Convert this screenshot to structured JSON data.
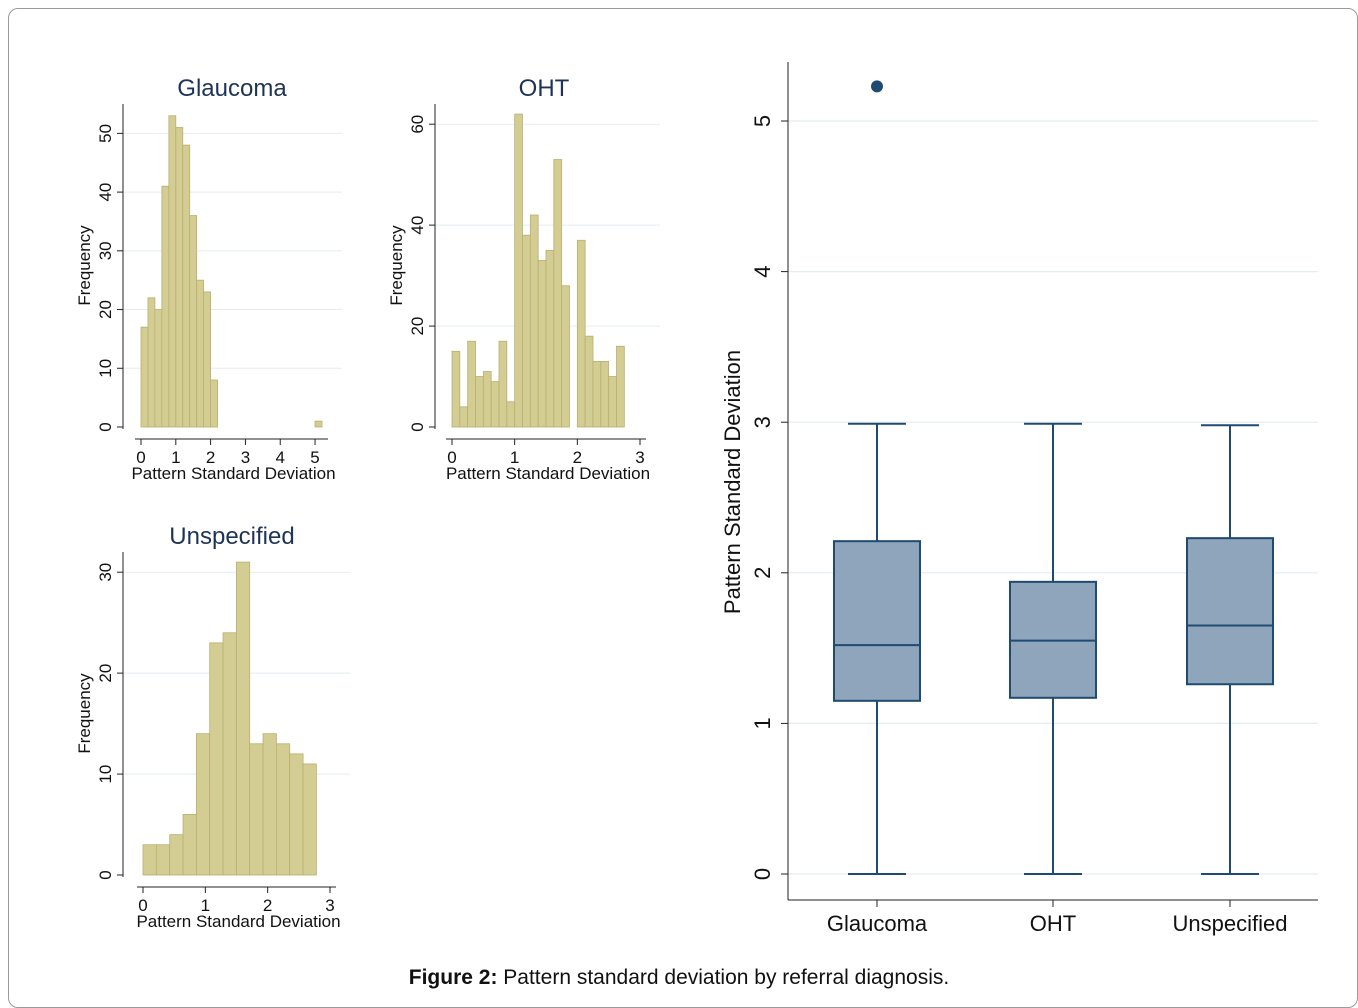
{
  "caption": {
    "label": "Figure 2:",
    "text": " Pattern standard deviation by referral diagnosis."
  },
  "chart_data": [
    {
      "type": "bar",
      "title": "Glaucoma",
      "xlabel": "Pattern Standard Deviation",
      "ylabel": "Frequency",
      "xlim": [
        0,
        5.2
      ],
      "ylim": [
        0,
        55
      ],
      "xticks": [
        0,
        1,
        2,
        3,
        4,
        5
      ],
      "yticks": [
        0,
        10,
        20,
        30,
        40,
        50
      ],
      "bin_width": 0.2,
      "bins": [
        {
          "x": 0.0,
          "v": 17
        },
        {
          "x": 0.2,
          "v": 22
        },
        {
          "x": 0.4,
          "v": 20
        },
        {
          "x": 0.6,
          "v": 41
        },
        {
          "x": 0.8,
          "v": 53
        },
        {
          "x": 1.0,
          "v": 51
        },
        {
          "x": 1.2,
          "v": 48
        },
        {
          "x": 1.4,
          "v": 36
        },
        {
          "x": 1.6,
          "v": 25
        },
        {
          "x": 1.8,
          "v": 23
        },
        {
          "x": 2.0,
          "v": 8
        },
        {
          "x": 5.0,
          "v": 1
        }
      ],
      "grid": true
    },
    {
      "type": "bar",
      "title": "OHT",
      "xlabel": "Pattern Standard Deviation",
      "ylabel": "Frequency",
      "xlim": [
        0,
        3
      ],
      "ylim": [
        0,
        64
      ],
      "xticks": [
        0,
        1,
        2,
        3
      ],
      "yticks": [
        0,
        20,
        40,
        60
      ],
      "bin_width": 0.125,
      "bins": [
        {
          "x": 0.0,
          "v": 15
        },
        {
          "x": 0.125,
          "v": 4
        },
        {
          "x": 0.25,
          "v": 17
        },
        {
          "x": 0.375,
          "v": 10
        },
        {
          "x": 0.5,
          "v": 11
        },
        {
          "x": 0.625,
          "v": 9
        },
        {
          "x": 0.75,
          "v": 17
        },
        {
          "x": 0.875,
          "v": 5
        },
        {
          "x": 1.0,
          "v": 62
        },
        {
          "x": 1.125,
          "v": 38
        },
        {
          "x": 1.25,
          "v": 42
        },
        {
          "x": 1.375,
          "v": 33
        },
        {
          "x": 1.5,
          "v": 35
        },
        {
          "x": 1.625,
          "v": 53
        },
        {
          "x": 1.75,
          "v": 28
        },
        {
          "x": 2.0,
          "v": 37
        },
        {
          "x": 2.125,
          "v": 18
        },
        {
          "x": 2.25,
          "v": 13
        },
        {
          "x": 2.375,
          "v": 13
        },
        {
          "x": 2.5,
          "v": 10
        },
        {
          "x": 2.625,
          "v": 16
        }
      ],
      "grid": true
    },
    {
      "type": "bar",
      "title": "Unspecified",
      "xlabel": "Pattern Standard Deviation",
      "ylabel": "Frequency",
      "xlim": [
        0,
        3
      ],
      "ylim": [
        0,
        32
      ],
      "xticks": [
        0,
        1,
        2,
        3
      ],
      "yticks": [
        0,
        10,
        20,
        30
      ],
      "bin_width": 0.214,
      "bins": [
        {
          "x": 0.0,
          "v": 3
        },
        {
          "x": 0.214,
          "v": 3
        },
        {
          "x": 0.428,
          "v": 4
        },
        {
          "x": 0.642,
          "v": 6
        },
        {
          "x": 0.856,
          "v": 14
        },
        {
          "x": 1.07,
          "v": 23
        },
        {
          "x": 1.284,
          "v": 24
        },
        {
          "x": 1.498,
          "v": 31
        },
        {
          "x": 1.712,
          "v": 13
        },
        {
          "x": 1.926,
          "v": 14
        },
        {
          "x": 2.14,
          "v": 13
        },
        {
          "x": 2.354,
          "v": 12
        },
        {
          "x": 2.568,
          "v": 11
        }
      ],
      "grid": true
    },
    {
      "type": "box",
      "ylabel": "Pattern Standard Deviation",
      "categories": [
        "Glaucoma",
        "OHT",
        "Unspecified"
      ],
      "ylim": [
        -0.2,
        5.4
      ],
      "yticks": [
        0,
        1,
        2,
        3,
        4,
        5
      ],
      "boxes": [
        {
          "min": 0,
          "q1": 1.15,
          "median": 1.52,
          "q3": 2.21,
          "max": 2.99,
          "outliers": [
            5.23
          ]
        },
        {
          "min": 0,
          "q1": 1.17,
          "median": 1.55,
          "q3": 1.94,
          "max": 2.99,
          "outliers": []
        },
        {
          "min": 0,
          "q1": 1.26,
          "median": 1.65,
          "q3": 2.23,
          "max": 2.98,
          "outliers": []
        }
      ],
      "grid": true
    }
  ],
  "colors": {
    "hist_fill": "#d3cd93",
    "hist_stroke": "#b8b070",
    "box_fill": "#8fa5bc",
    "box_stroke": "#1f4a72",
    "title": "#1e3456",
    "grid": "#e4ecf0"
  }
}
